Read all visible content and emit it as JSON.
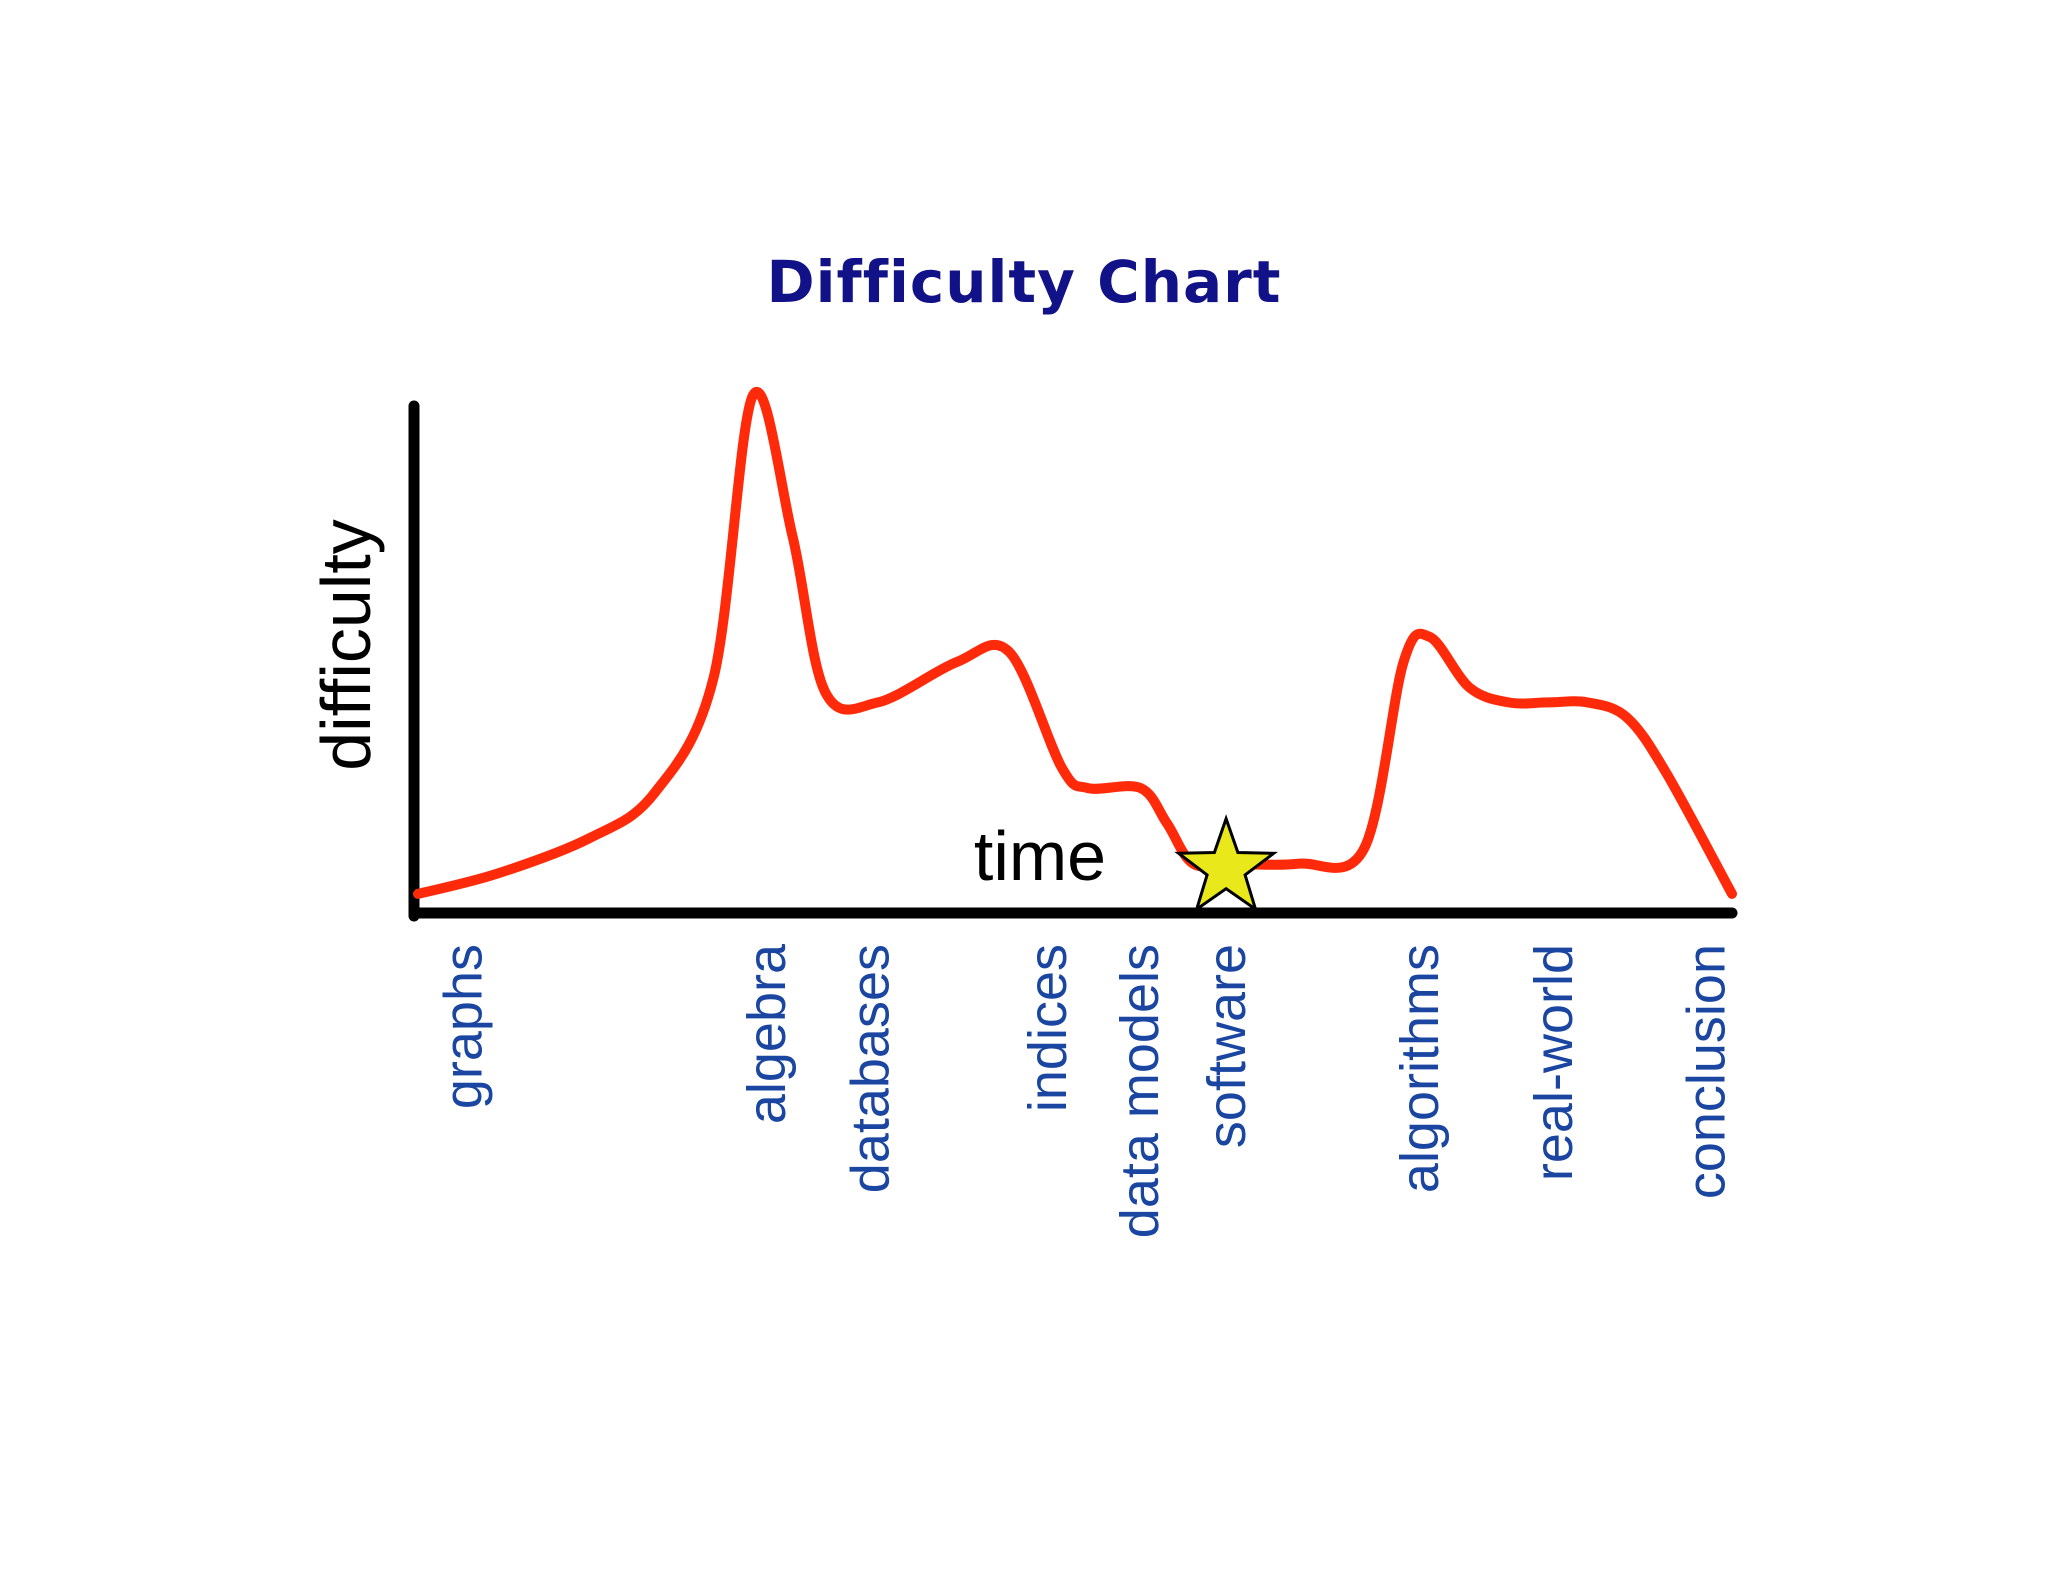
{
  "chart_data": {
    "type": "line",
    "title": "Difficulty Chart",
    "xlabel": "time",
    "ylabel": "difficulty",
    "xlim": [
      0,
      100
    ],
    "ylim": [
      0,
      100
    ],
    "categories": [
      "graphs",
      "algebra",
      "databases",
      "indices",
      "data models",
      "software",
      "algorithms",
      "real-world",
      "conclusion"
    ],
    "category_x": [
      3.3,
      26.4,
      34.3,
      47.8,
      54.8,
      61.4,
      76.1,
      86.3,
      97.9
    ],
    "series": [
      {
        "x": [
          0,
          6,
          13,
          18,
          22.5,
          25.5,
          28.5,
          31,
          35,
          41,
          45,
          49,
          51,
          55,
          57,
          59,
          62,
          67,
          72,
          75,
          77,
          80,
          83,
          86,
          89,
          92,
          95,
          100
        ],
        "values": [
          2,
          6,
          13,
          22,
          45,
          101,
          73,
          42,
          40,
          48,
          50,
          27,
          23,
          23,
          16,
          8,
          8,
          8,
          11,
          48,
          53,
          43,
          40,
          40,
          40,
          37,
          26,
          2
        ]
      }
    ],
    "annotations": [
      {
        "type": "star",
        "x": 61.5,
        "y": 7
      }
    ],
    "colors": {
      "title": "#111188",
      "line": "#ff2a0a",
      "axes": "#000000",
      "tick_labels": "#1a45a0",
      "star_fill": "#e8e81a",
      "star_stroke": "#000000"
    },
    "grid": false,
    "legend": "none"
  }
}
